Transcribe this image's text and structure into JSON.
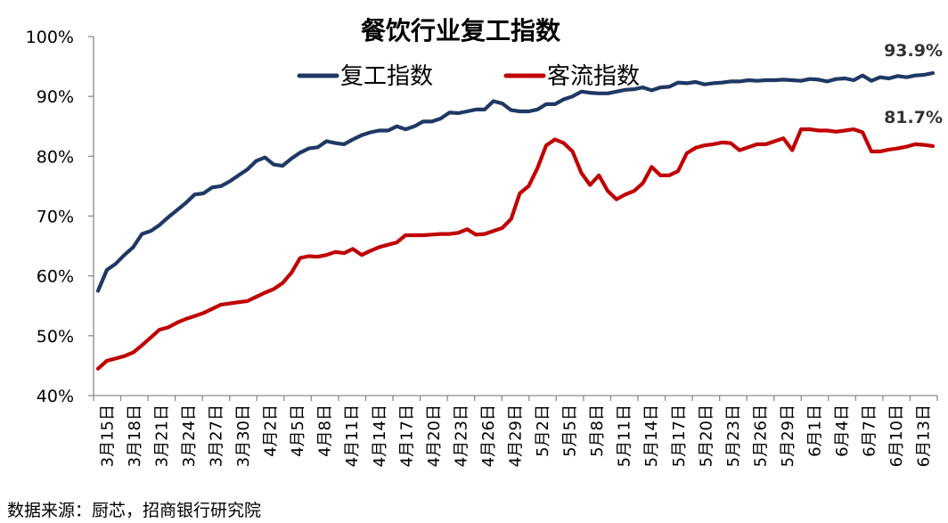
{
  "chart_data": {
    "type": "line",
    "title": "餐饮行业复工指数",
    "xlabel": "",
    "ylabel": "",
    "ylim": [
      40,
      100
    ],
    "yticks": [
      "40%",
      "50%",
      "60%",
      "70%",
      "80%",
      "90%",
      "100%"
    ],
    "grid": false,
    "legend": "top",
    "x_tick_labels": [
      "3月15日",
      "3月18日",
      "3月21日",
      "3月24日",
      "3月27日",
      "3月30日",
      "4月2日",
      "4月5日",
      "4月8日",
      "4月11日",
      "4月14日",
      "4月17日",
      "4月20日",
      "4月23日",
      "4月26日",
      "4月29日",
      "5月2日",
      "5月5日",
      "5月8日",
      "5月11日",
      "5月14日",
      "5月17日",
      "5月20日",
      "5月23日",
      "5月26日",
      "5月29日",
      "6月1日",
      "6月4日",
      "6月7日",
      "6月10日",
      "6月13日"
    ],
    "series": [
      {
        "name": "复工指数",
        "color": "#1f3864",
        "end_label": "93.9%",
        "values": [
          57.5,
          61.0,
          62.0,
          63.5,
          64.8,
          67.0,
          67.5,
          68.5,
          69.8,
          71.0,
          72.2,
          73.6,
          73.8,
          74.8,
          75.0,
          75.8,
          76.8,
          77.8,
          79.2,
          79.8,
          78.6,
          78.4,
          79.6,
          80.6,
          81.3,
          81.5,
          82.5,
          82.2,
          82.0,
          82.8,
          83.5,
          84.0,
          84.3,
          84.3,
          85.0,
          84.5,
          85.0,
          85.8,
          85.8,
          86.3,
          87.3,
          87.2,
          87.5,
          87.8,
          87.8,
          89.2,
          88.8,
          87.7,
          87.5,
          87.5,
          87.8,
          88.7,
          88.7,
          89.5,
          90.0,
          90.8,
          90.6,
          90.5,
          90.5,
          90.8,
          91.1,
          91.2,
          91.5,
          91.0,
          91.5,
          91.6,
          92.3,
          92.2,
          92.4,
          92.0,
          92.2,
          92.3,
          92.5,
          92.5,
          92.7,
          92.6,
          92.7,
          92.7,
          92.8,
          92.7,
          92.6,
          92.9,
          92.8,
          92.5,
          92.9,
          93.0,
          92.7,
          93.5,
          92.6,
          93.2,
          93.0,
          93.4,
          93.2,
          93.5,
          93.6,
          93.9
        ]
      },
      {
        "name": "客流指数",
        "color": "#c00000",
        "end_label": "81.7%",
        "values": [
          44.5,
          45.8,
          46.2,
          46.6,
          47.2,
          48.4,
          49.7,
          51.0,
          51.4,
          52.2,
          52.8,
          53.3,
          53.8,
          54.5,
          55.2,
          55.4,
          55.6,
          55.8,
          56.5,
          57.2,
          57.8,
          58.8,
          60.5,
          63.0,
          63.3,
          63.2,
          63.5,
          64.0,
          63.8,
          64.5,
          63.5,
          64.2,
          64.8,
          65.2,
          65.6,
          66.8,
          66.8,
          66.8,
          66.9,
          67.0,
          67.0,
          67.2,
          67.8,
          66.9,
          67.0,
          67.5,
          68.0,
          69.5,
          73.8,
          75.0,
          78.0,
          81.8,
          82.8,
          82.2,
          80.8,
          77.2,
          75.2,
          76.8,
          74.2,
          72.8,
          73.6,
          74.2,
          75.5,
          78.2,
          76.8,
          76.8,
          77.5,
          80.5,
          81.4,
          81.8,
          82.0,
          82.3,
          82.2,
          81.0,
          81.5,
          82.0,
          82.0,
          82.5,
          83.0,
          81.0,
          84.5,
          84.5,
          84.3,
          84.3,
          84.1,
          84.3,
          84.5,
          84.0,
          80.8,
          80.8,
          81.1,
          81.3,
          81.6,
          82.0,
          81.9,
          81.7
        ]
      }
    ]
  },
  "footer": {
    "source": "数据来源：厨芯，招商银行研究院"
  }
}
